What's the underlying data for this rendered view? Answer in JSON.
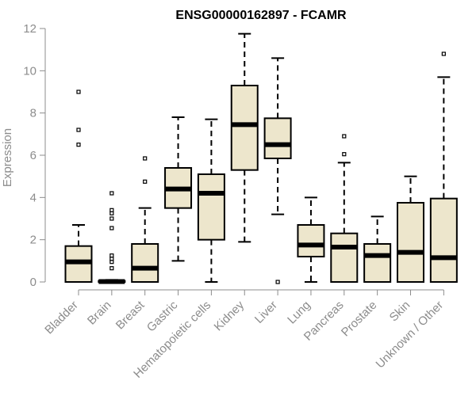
{
  "chart_data": {
    "type": "boxplot",
    "title": "ENSG00000162897 - FCAMR",
    "xlabel": "",
    "ylabel": "Expression",
    "ylim": [
      0,
      12
    ],
    "yticks": [
      0,
      2,
      4,
      6,
      8,
      10,
      12
    ],
    "grid": false,
    "fill_color": "#ede6cc",
    "categories": [
      "Bladder",
      "Brain",
      "Breast",
      "Gastric",
      "Hematopoietic cells",
      "Kidney",
      "Liver",
      "Lung",
      "Pancreas",
      "Prostate",
      "Skin",
      "Unknown / Other"
    ],
    "boxes": [
      {
        "name": "Bladder",
        "whisker_low": 0,
        "q1": 0,
        "median": 0.95,
        "q3": 1.7,
        "whisker_high": 2.7,
        "outliers": [
          6.5,
          7.2,
          9.0
        ]
      },
      {
        "name": "Brain",
        "whisker_low": 0,
        "q1": 0,
        "median": 0.02,
        "q3": 0.05,
        "whisker_high": 0.1,
        "outliers": [
          0.65,
          0.95,
          1.1,
          1.25,
          2.55,
          3.0,
          3.25,
          3.4,
          4.2
        ]
      },
      {
        "name": "Breast",
        "whisker_low": 0,
        "q1": 0,
        "median": 0.65,
        "q3": 1.8,
        "whisker_high": 3.5,
        "outliers": [
          4.75,
          5.85
        ]
      },
      {
        "name": "Gastric",
        "whisker_low": 1.0,
        "q1": 3.5,
        "median": 4.4,
        "q3": 5.4,
        "whisker_high": 7.8,
        "outliers": []
      },
      {
        "name": "Hematopoietic cells",
        "whisker_low": 0,
        "q1": 2.0,
        "median": 4.2,
        "q3": 5.1,
        "whisker_high": 7.7,
        "outliers": []
      },
      {
        "name": "Kidney",
        "whisker_low": 1.9,
        "q1": 5.3,
        "median": 7.45,
        "q3": 9.3,
        "whisker_high": 11.75,
        "outliers": []
      },
      {
        "name": "Liver",
        "whisker_low": 3.2,
        "q1": 5.85,
        "median": 6.5,
        "q3": 7.75,
        "whisker_high": 10.6,
        "outliers": [
          0.0
        ]
      },
      {
        "name": "Lung",
        "whisker_low": 0,
        "q1": 1.2,
        "median": 1.75,
        "q3": 2.7,
        "whisker_high": 4.0,
        "outliers": []
      },
      {
        "name": "Pancreas",
        "whisker_low": 0,
        "q1": 0,
        "median": 1.65,
        "q3": 2.3,
        "whisker_high": 5.65,
        "outliers": [
          6.05,
          6.9
        ]
      },
      {
        "name": "Prostate",
        "whisker_low": 0,
        "q1": 0,
        "median": 1.25,
        "q3": 1.8,
        "whisker_high": 3.1,
        "outliers": []
      },
      {
        "name": "Skin",
        "whisker_low": 0,
        "q1": 0,
        "median": 1.4,
        "q3": 3.75,
        "whisker_high": 5.0,
        "outliers": []
      },
      {
        "name": "Unknown / Other",
        "whisker_low": 0,
        "q1": 0,
        "median": 1.15,
        "q3": 3.95,
        "whisker_high": 9.7,
        "outliers": [
          10.8
        ]
      }
    ]
  }
}
